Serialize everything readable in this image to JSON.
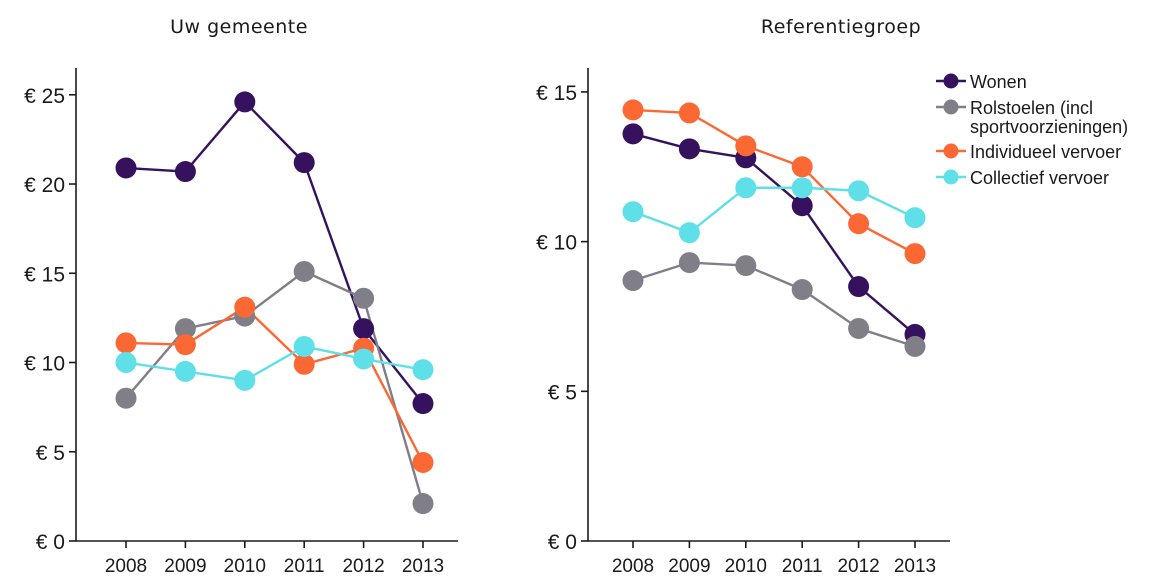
{
  "chart_data": [
    {
      "type": "line",
      "title": "Uw gemeente",
      "categories": [
        "2008",
        "2009",
        "2010",
        "2011",
        "2012",
        "2013"
      ],
      "ylim": [
        0,
        26.5
      ],
      "yticks": [
        0,
        5,
        10,
        15,
        20,
        25
      ],
      "ytick_labels": [
        "€ 0",
        "€ 5",
        "€ 10",
        "€ 15",
        "€ 20",
        "€ 25"
      ],
      "grid": false,
      "series": [
        {
          "name": "Wonen",
          "color": "#35115e",
          "values": [
            20.9,
            20.7,
            24.6,
            21.2,
            11.9,
            7.7
          ]
        },
        {
          "name": "Rolstoelen (incl sportvoorzieningen)",
          "color": "#807f88",
          "values": [
            8.0,
            11.9,
            12.6,
            15.1,
            13.6,
            2.1
          ]
        },
        {
          "name": "Individueel vervoer",
          "color": "#fb6833",
          "values": [
            11.1,
            11.0,
            13.1,
            9.9,
            10.8,
            4.4
          ]
        },
        {
          "name": "Collectief vervoer",
          "color": "#5fe0e8",
          "values": [
            10.0,
            9.5,
            9.0,
            10.9,
            10.2,
            9.6
          ]
        }
      ]
    },
    {
      "type": "line",
      "title": "Referentiegroep",
      "categories": [
        "2008",
        "2009",
        "2010",
        "2011",
        "2012",
        "2013"
      ],
      "ylim": [
        0,
        15.8
      ],
      "yticks": [
        0,
        5,
        10,
        15
      ],
      "ytick_labels": [
        "€ 0",
        "€ 5",
        "€ 10",
        "€ 15"
      ],
      "grid": false,
      "legend_position": "top-right",
      "series": [
        {
          "name": "Wonen",
          "color": "#35115e",
          "values": [
            13.6,
            13.1,
            12.8,
            11.2,
            8.5,
            6.9
          ]
        },
        {
          "name": "Rolstoelen (incl sportvoorzieningen)",
          "color": "#807f88",
          "values": [
            8.7,
            9.3,
            9.2,
            8.4,
            7.1,
            6.5
          ]
        },
        {
          "name": "Individueel vervoer",
          "color": "#fb6833",
          "values": [
            14.4,
            14.3,
            13.2,
            12.5,
            10.6,
            9.6
          ]
        },
        {
          "name": "Collectief vervoer",
          "color": "#5fe0e8",
          "values": [
            11.0,
            10.3,
            11.8,
            11.8,
            11.7,
            10.8
          ]
        }
      ]
    }
  ],
  "legend": {
    "items": [
      {
        "label_lines": [
          "Wonen"
        ],
        "color": "#35115e"
      },
      {
        "label_lines": [
          "Rolstoelen (incl",
          "sportvoorzieningen)"
        ],
        "color": "#807f88"
      },
      {
        "label_lines": [
          "Individueel vervoer"
        ],
        "color": "#fb6833"
      },
      {
        "label_lines": [
          "Collectief vervoer"
        ],
        "color": "#5fe0e8"
      }
    ]
  }
}
